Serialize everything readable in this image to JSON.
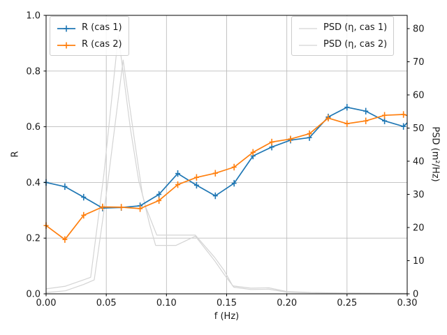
{
  "chart_data": {
    "type": "line",
    "title": "",
    "xlabel": "f (Hz)",
    "ylabel_left": "R",
    "ylabel_right": "PSD (m²/Hz)",
    "xlim": [
      0.0,
      0.3
    ],
    "ylim_left": [
      0.0,
      1.0
    ],
    "ylim_right": [
      0,
      84
    ],
    "xticks": [
      "0.00",
      "0.05",
      "0.10",
      "0.15",
      "0.20",
      "0.25",
      "0.30"
    ],
    "yticks_left": [
      "0.0",
      "0.2",
      "0.4",
      "0.6",
      "0.8",
      "1.0"
    ],
    "yticks_right": [
      "0",
      "10",
      "20",
      "30",
      "40",
      "50",
      "60",
      "70",
      "80"
    ],
    "grid": true,
    "grid_color": "#bdbdbd",
    "spine_color": "#000000",
    "legend_positions": [
      "upper left",
      "upper right"
    ],
    "series": [
      {
        "name": "R (cas 1)",
        "axis": "left",
        "color": "#1f77b4",
        "marker": "+",
        "edge_point": true,
        "x": [
          0.0,
          0.0156,
          0.0312,
          0.0469,
          0.0625,
          0.0781,
          0.0938,
          0.1094,
          0.125,
          0.1406,
          0.1562,
          0.1719,
          0.1875,
          0.2031,
          0.2188,
          0.2344,
          0.25,
          0.2656,
          0.2812,
          0.2969,
          0.3
        ],
        "y": [
          0.4,
          0.385,
          0.347,
          0.308,
          0.31,
          0.316,
          0.357,
          0.432,
          0.39,
          0.352,
          0.397,
          0.495,
          0.527,
          0.552,
          0.561,
          0.635,
          0.67,
          0.656,
          0.621,
          0.601,
          0.614
        ]
      },
      {
        "name": "R (cas 2)",
        "axis": "left",
        "color": "#ff7f0e",
        "marker": "+",
        "edge_point": true,
        "x": [
          0.0,
          0.0156,
          0.0312,
          0.0469,
          0.0625,
          0.0781,
          0.0938,
          0.1094,
          0.125,
          0.1406,
          0.1562,
          0.1719,
          0.1875,
          0.2031,
          0.2188,
          0.2344,
          0.25,
          0.2656,
          0.2812,
          0.2969,
          0.3
        ],
        "y": [
          0.245,
          0.195,
          0.282,
          0.312,
          0.311,
          0.306,
          0.335,
          0.392,
          0.418,
          0.433,
          0.455,
          0.508,
          0.545,
          0.556,
          0.575,
          0.631,
          0.611,
          0.621,
          0.641,
          0.644,
          0.64
        ]
      },
      {
        "name": "PSD (η, cas 1)",
        "axis": "right",
        "color": "#d4d4d4",
        "marker": null,
        "edge_point": false,
        "x": [
          0.0,
          0.016,
          0.031,
          0.037,
          0.048,
          0.06,
          0.07,
          0.077,
          0.083,
          0.092,
          0.124,
          0.14,
          0.148,
          0.155,
          0.17,
          0.185,
          0.2,
          0.22,
          0.25,
          0.3
        ],
        "y": [
          1.5,
          2.3,
          4.2,
          5.0,
          36,
          78,
          50,
          34,
          26,
          17.7,
          17.7,
          11,
          7.0,
          2.4,
          1.7,
          1.8,
          0.7,
          0.4,
          0.25,
          0.15
        ]
      },
      {
        "name": "PSD (η, cas 2)",
        "axis": "right",
        "color": "#d4d4d4",
        "marker": null,
        "edge_point": false,
        "x": [
          0.0,
          0.016,
          0.031,
          0.04,
          0.05,
          0.064,
          0.074,
          0.08,
          0.086,
          0.091,
          0.108,
          0.124,
          0.14,
          0.148,
          0.156,
          0.17,
          0.185,
          0.2,
          0.22,
          0.25,
          0.3
        ],
        "y": [
          0.4,
          0.9,
          2.8,
          4.2,
          30,
          70.5,
          45,
          30,
          21,
          14.6,
          14.6,
          17.4,
          10,
          5.8,
          2.0,
          1.3,
          1.4,
          0.5,
          0.3,
          0.15,
          0.1
        ]
      }
    ]
  }
}
